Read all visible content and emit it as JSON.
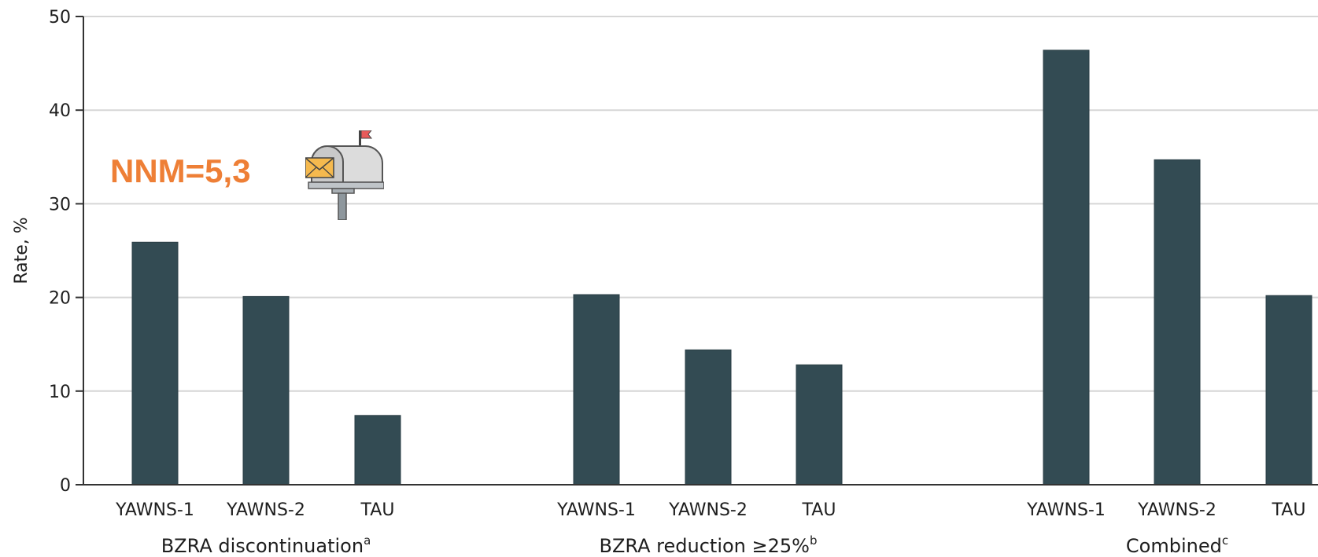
{
  "colors": {
    "bar": "#334b53",
    "grid": "#d6d6d6",
    "axis": "#333333",
    "annotation": "#ee7f36"
  },
  "annotation": {
    "text": "NNM=5,3"
  },
  "icons": {
    "mailbox": "mailbox-with-letter-icon"
  },
  "chart_data": {
    "type": "bar",
    "ylabel": "Rate, %",
    "ylim": [
      0,
      50
    ],
    "yticks": [
      0,
      10,
      20,
      30,
      40,
      50
    ],
    "grid": true,
    "groups": [
      {
        "label": "BZRA discontinuation",
        "superscript": "a",
        "categories": [
          "YAWNS-1",
          "YAWNS-2",
          "TAU"
        ],
        "values": [
          25.9,
          20.1,
          7.4
        ]
      },
      {
        "label": "BZRA reduction ≥25%",
        "superscript": "b",
        "categories": [
          "YAWNS-1",
          "YAWNS-2",
          "TAU"
        ],
        "values": [
          20.3,
          14.4,
          12.8
        ]
      },
      {
        "label": "Combined",
        "superscript": "c",
        "categories": [
          "YAWNS-1",
          "YAWNS-2",
          "TAU"
        ],
        "values": [
          46.4,
          34.7,
          20.2
        ]
      }
    ]
  }
}
